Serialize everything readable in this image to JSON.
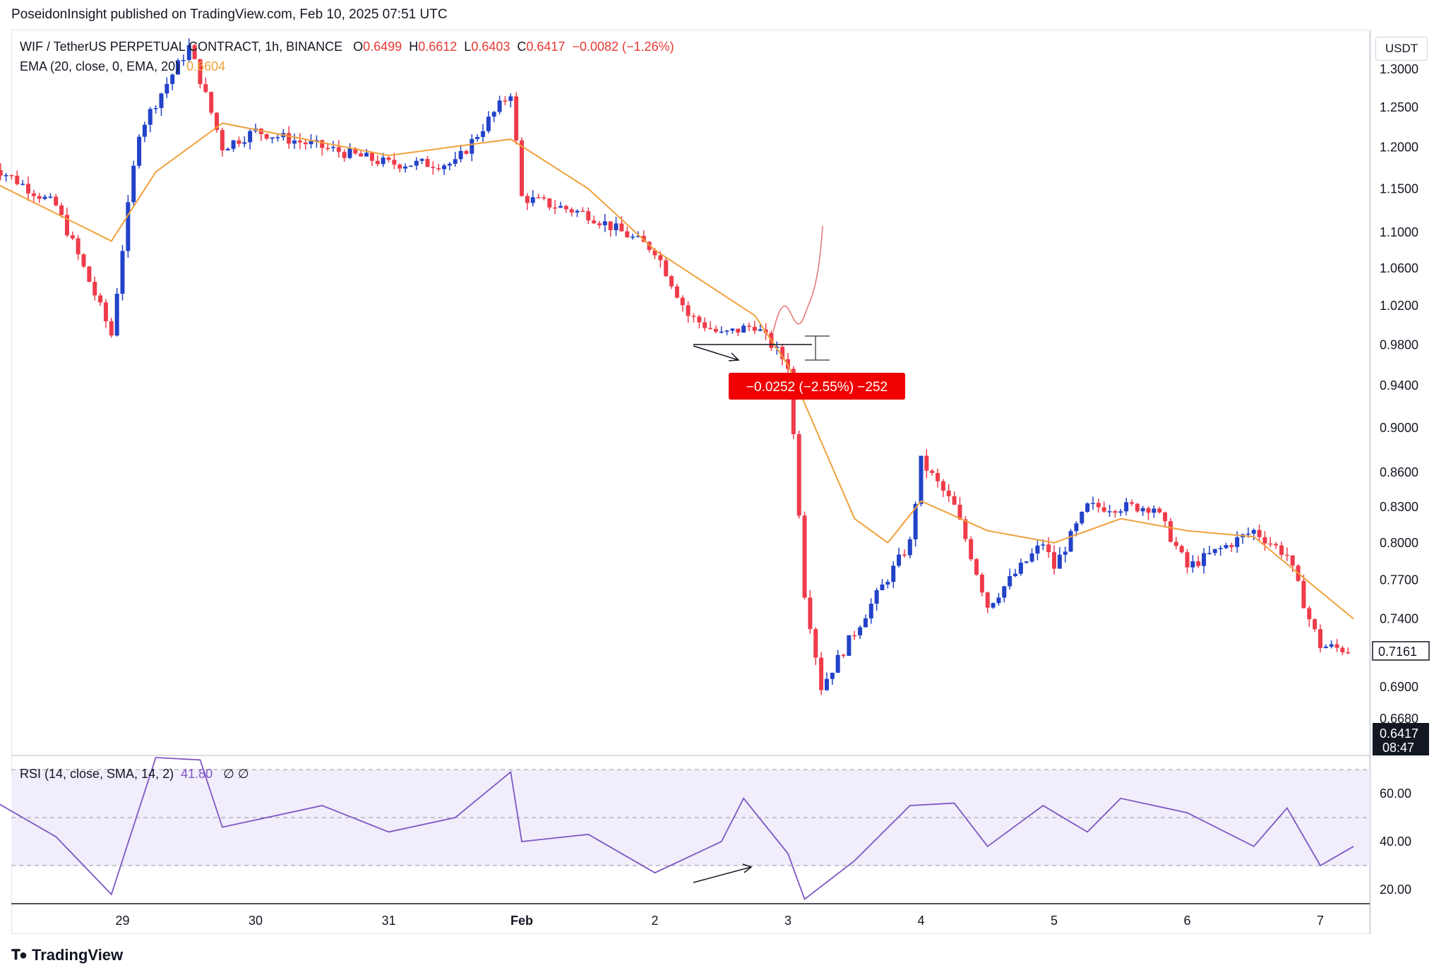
{
  "header": {
    "published": "PoseidonInsight published on TradingView.com, Feb 10, 2025 07:51 UTC"
  },
  "legend": {
    "symbol": "WIF / TetherUS PERPETUAL CONTRACT, 1h, BINANCE",
    "open_label": "O",
    "open": "0.6499",
    "high_label": "H",
    "high": "0.6612",
    "low_label": "L",
    "low": "0.6403",
    "close_label": "C",
    "close": "0.6417",
    "change": "−0.0082 (−1.26%)",
    "ema_label": "EMA (20, close, 0, EMA, 20)",
    "ema_value": "0.6604",
    "rsi_label": "RSI (14, close, SMA, 14, 2)",
    "rsi_value": "41.80",
    "rsi_extra": "∅  ∅"
  },
  "currency_button": "USDT",
  "measure_label": "−0.0252 (−2.55%) −252",
  "price_tag": {
    "value": "0.7161"
  },
  "last_price_tag": {
    "value": "0.6417",
    "countdown": "08:47"
  },
  "footer": {
    "brand": "TradingView",
    "logo_icon": "tradingview-logo-icon"
  },
  "colors": {
    "up": "#2242c8",
    "down": "#ef3b4a",
    "ema": "#f0a13c",
    "rsi": "#7e57c2",
    "rsi_band": "#f1edfb"
  },
  "chart_data": [
    {
      "type": "candlestick",
      "title": "",
      "y_scale": "log",
      "price_axis_ticks": [
        "1.3000",
        "1.2500",
        "1.2000",
        "1.1500",
        "1.1000",
        "1.0600",
        "1.0200",
        "0.9800",
        "0.9400",
        "0.9000",
        "0.8600",
        "0.8300",
        "0.8000",
        "0.7700",
        "0.7400",
        "0.6900",
        "0.6680"
      ],
      "time_axis_ticks": [
        "29",
        "30",
        "31",
        "Feb",
        "2",
        "3",
        "4",
        "5",
        "6",
        "7"
      ],
      "close_path": [
        {
          "t": "Jan 28 00:00",
          "close": 1.18
        },
        {
          "t": "Jan 28 12:00",
          "close": 1.13
        },
        {
          "t": "Jan 28 22:00",
          "close": 0.99
        },
        {
          "t": "Jan 29 03:00",
          "close": 1.22
        },
        {
          "t": "Jan 29 12:00",
          "close": 1.33
        },
        {
          "t": "Jan 29 18:00",
          "close": 1.2
        },
        {
          "t": "Jan 30 00:00",
          "close": 1.22
        },
        {
          "t": "Jan 30 12:00",
          "close": 1.2
        },
        {
          "t": "Jan 31 00:00",
          "close": 1.18
        },
        {
          "t": "Jan 31 12:00",
          "close": 1.18
        },
        {
          "t": "Jan 31 22:00",
          "close": 1.27
        },
        {
          "t": "Feb 1 00:00",
          "close": 1.14
        },
        {
          "t": "Feb 1 12:00",
          "close": 1.12
        },
        {
          "t": "Feb 2 00:00",
          "close": 1.08
        },
        {
          "t": "Feb 2 06:00",
          "close": 1.01
        },
        {
          "t": "Feb 2 12:00",
          "close": 0.99
        },
        {
          "t": "Feb 2 18:00",
          "close": 1.0
        },
        {
          "t": "Feb 3 00:00",
          "close": 0.96
        },
        {
          "t": "Feb 3 03:00",
          "close": 0.76
        },
        {
          "t": "Feb 3 06:00",
          "close": 0.69
        },
        {
          "t": "Feb 3 12:00",
          "close": 0.73
        },
        {
          "t": "Feb 3 22:00",
          "close": 0.8
        },
        {
          "t": "Feb 4 00:00",
          "close": 0.87
        },
        {
          "t": "Feb 4 06:00",
          "close": 0.83
        },
        {
          "t": "Feb 4 12:00",
          "close": 0.75
        },
        {
          "t": "Feb 4 22:00",
          "close": 0.8
        },
        {
          "t": "Feb 5 00:00",
          "close": 0.78
        },
        {
          "t": "Feb 5 06:00",
          "close": 0.83
        },
        {
          "t": "Feb 5 18:00",
          "close": 0.83
        },
        {
          "t": "Feb 6 00:00",
          "close": 0.78
        },
        {
          "t": "Feb 6 12:00",
          "close": 0.81
        },
        {
          "t": "Feb 6 18:00",
          "close": 0.79
        },
        {
          "t": "Feb 6 22:00",
          "close": 0.74
        },
        {
          "t": "Feb 7 00:00",
          "close": 0.72
        },
        {
          "t": "Feb 7 06:00",
          "close": 0.716
        }
      ],
      "ema20_path": [
        {
          "t": "Jan 28 00:00",
          "value": 1.16
        },
        {
          "t": "Jan 28 22:00",
          "value": 1.09
        },
        {
          "t": "Jan 29 06:00",
          "value": 1.17
        },
        {
          "t": "Jan 29 18:00",
          "value": 1.23
        },
        {
          "t": "Jan 31 00:00",
          "value": 1.19
        },
        {
          "t": "Jan 31 22:00",
          "value": 1.21
        },
        {
          "t": "Feb 1 12:00",
          "value": 1.15
        },
        {
          "t": "Feb 2 00:00",
          "value": 1.08
        },
        {
          "t": "Feb 2 18:00",
          "value": 1.01
        },
        {
          "t": "Feb 3 00:00",
          "value": 0.96
        },
        {
          "t": "Feb 3 12:00",
          "value": 0.82
        },
        {
          "t": "Feb 3 18:00",
          "value": 0.8
        },
        {
          "t": "Feb 4 00:00",
          "value": 0.835
        },
        {
          "t": "Feb 4 12:00",
          "value": 0.81
        },
        {
          "t": "Feb 5 00:00",
          "value": 0.8
        },
        {
          "t": "Feb 5 12:00",
          "value": 0.82
        },
        {
          "t": "Feb 6 00:00",
          "value": 0.81
        },
        {
          "t": "Feb 6 12:00",
          "value": 0.805
        },
        {
          "t": "Feb 7 06:00",
          "value": 0.74
        }
      ]
    },
    {
      "type": "line",
      "title": "",
      "ylim": [
        10,
        80
      ],
      "y_ticks": [
        "60.00",
        "40.00",
        "20.00"
      ],
      "bands": [
        30,
        50,
        70
      ],
      "rsi_path": [
        {
          "t": "Jan 28 00:00",
          "value": 58
        },
        {
          "t": "Jan 28 12:00",
          "value": 42
        },
        {
          "t": "Jan 28 22:00",
          "value": 18
        },
        {
          "t": "Jan 29 06:00",
          "value": 75
        },
        {
          "t": "Jan 29 14:00",
          "value": 74
        },
        {
          "t": "Jan 29 18:00",
          "value": 46
        },
        {
          "t": "Jan 30 12:00",
          "value": 55
        },
        {
          "t": "Jan 31 00:00",
          "value": 44
        },
        {
          "t": "Jan 31 12:00",
          "value": 50
        },
        {
          "t": "Jan 31 22:00",
          "value": 69
        },
        {
          "t": "Feb 1 00:00",
          "value": 40
        },
        {
          "t": "Feb 1 12:00",
          "value": 43
        },
        {
          "t": "Feb 2 00:00",
          "value": 27
        },
        {
          "t": "Feb 2 12:00",
          "value": 40
        },
        {
          "t": "Feb 2 16:00",
          "value": 58
        },
        {
          "t": "Feb 3 00:00",
          "value": 35
        },
        {
          "t": "Feb 3 03:00",
          "value": 16
        },
        {
          "t": "Feb 3 12:00",
          "value": 32
        },
        {
          "t": "Feb 3 22:00",
          "value": 55
        },
        {
          "t": "Feb 4 06:00",
          "value": 56
        },
        {
          "t": "Feb 4 12:00",
          "value": 38
        },
        {
          "t": "Feb 4 22:00",
          "value": 55
        },
        {
          "t": "Feb 5 06:00",
          "value": 44
        },
        {
          "t": "Feb 5 12:00",
          "value": 58
        },
        {
          "t": "Feb 6 00:00",
          "value": 52
        },
        {
          "t": "Feb 6 12:00",
          "value": 38
        },
        {
          "t": "Feb 6 18:00",
          "value": 54
        },
        {
          "t": "Feb 7 00:00",
          "value": 30
        },
        {
          "t": "Feb 7 06:00",
          "value": 38
        }
      ]
    }
  ]
}
